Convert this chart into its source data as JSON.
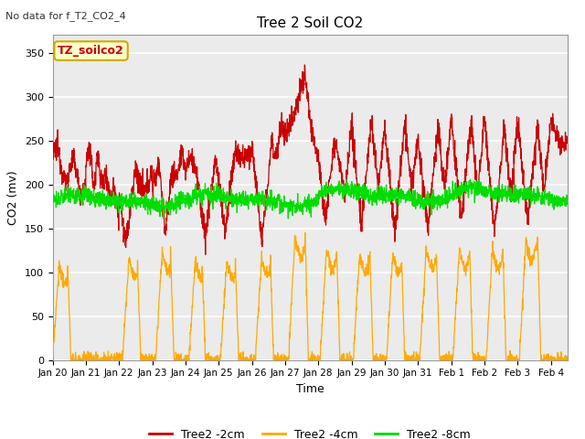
{
  "title": "Tree 2 Soil CO2",
  "no_data_text": "No data for f_T2_CO2_4",
  "ylabel": "CO2 (mv)",
  "xlabel": "Time",
  "legend_label": "TZ_soilco2",
  "ylim": [
    0,
    370
  ],
  "yticks": [
    0,
    50,
    100,
    150,
    200,
    250,
    300,
    350
  ],
  "xtick_labels": [
    "Jan 20",
    "Jan 21",
    "Jan 22",
    "Jan 23",
    "Jan 24",
    "Jan 25",
    "Jan 26",
    "Jan 27",
    "Jan 28",
    "Jan 29",
    "Jan 30",
    "Jan 31",
    "Feb 1",
    "Feb 2",
    "Feb 3",
    "Feb 4"
  ],
  "line_red_label": "Tree2 -2cm",
  "line_orange_label": "Tree2 -4cm",
  "line_green_label": "Tree2 -8cm",
  "red_color": "#cc0000",
  "orange_color": "#ffaa00",
  "green_color": "#00dd00",
  "background_color": "#ffffff",
  "plot_bg_color": "#ebebeb",
  "grid_color": "#ffffff",
  "legend_box_facecolor": "#ffffcc",
  "legend_box_edgecolor": "#ccaa00",
  "legend_text_color": "#cc0000"
}
